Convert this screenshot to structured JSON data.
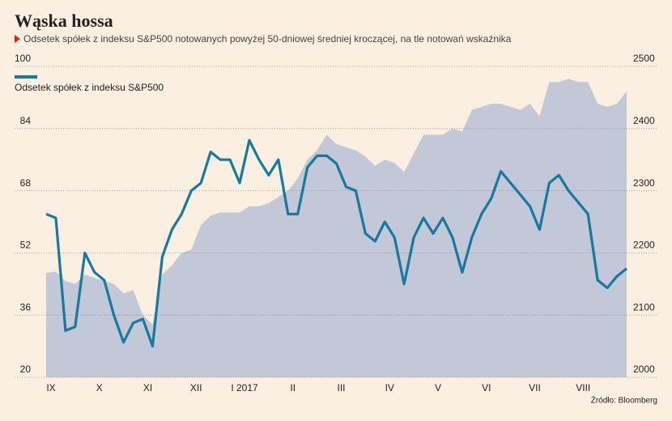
{
  "chart_data": {
    "type": "line",
    "title": "Wąska hossa",
    "subtitle": "Odsetek spółek z indeksu S&P500 notowanych powyżej 50-dniowej średniej kroczącej, na tle notowań wskaźnika",
    "source": "Źródło: Bloomberg",
    "categories": [
      "IX",
      null,
      null,
      null,
      null,
      "X",
      null,
      null,
      null,
      null,
      "XI",
      null,
      null,
      null,
      null,
      "XII",
      null,
      null,
      null,
      null,
      "I 2017",
      null,
      null,
      null,
      null,
      "II",
      null,
      null,
      null,
      null,
      "III",
      null,
      null,
      null,
      null,
      "IV",
      null,
      null,
      null,
      null,
      "V",
      null,
      null,
      null,
      null,
      "VI",
      null,
      null,
      null,
      null,
      "VII",
      null,
      null,
      null,
      null,
      "VIII",
      null,
      null,
      null,
      null,
      null
    ],
    "series": [
      {
        "name": "Odsetek spółek z indeksu S&P500",
        "color": "#17799f",
        "axis": "y",
        "values": [
          62,
          61,
          32,
          33,
          52,
          47,
          45,
          36,
          29,
          34,
          35,
          28,
          51,
          58,
          62,
          68,
          70,
          78,
          76,
          76,
          70,
          81,
          76,
          72,
          76,
          62,
          62,
          74,
          77,
          77,
          75,
          69,
          68,
          57,
          55,
          60,
          56,
          44,
          56,
          61,
          57,
          61,
          56,
          47,
          56,
          62,
          66,
          73,
          70,
          67,
          64,
          58,
          70,
          72,
          68,
          65,
          62,
          45,
          43,
          46,
          48
        ]
      },
      {
        "color": "#c2c8d7",
        "axis": "y2",
        "values": [
          2168,
          2170,
          2155,
          2150,
          2165,
          2160,
          2155,
          2150,
          2135,
          2140,
          2100,
          2085,
          2165,
          2180,
          2200,
          2205,
          2245,
          2260,
          2265,
          2265,
          2265,
          2275,
          2275,
          2280,
          2290,
          2300,
          2320,
          2350,
          2365,
          2390,
          2375,
          2370,
          2365,
          2355,
          2340,
          2350,
          2345,
          2330,
          2360,
          2390,
          2390,
          2390,
          2400,
          2395,
          2430,
          2435,
          2440,
          2440,
          2435,
          2430,
          2440,
          2420,
          2475,
          2475,
          2480,
          2475,
          2475,
          2440,
          2435,
          2440,
          2460
        ]
      }
    ],
    "ylim": [
      20,
      100
    ],
    "yticks": [
      20,
      36,
      52,
      68,
      84,
      100
    ],
    "y2lim": [
      2000,
      2500
    ],
    "y2ticks": [
      2000,
      2100,
      2200,
      2300,
      2400,
      2500
    ],
    "grid": true
  }
}
